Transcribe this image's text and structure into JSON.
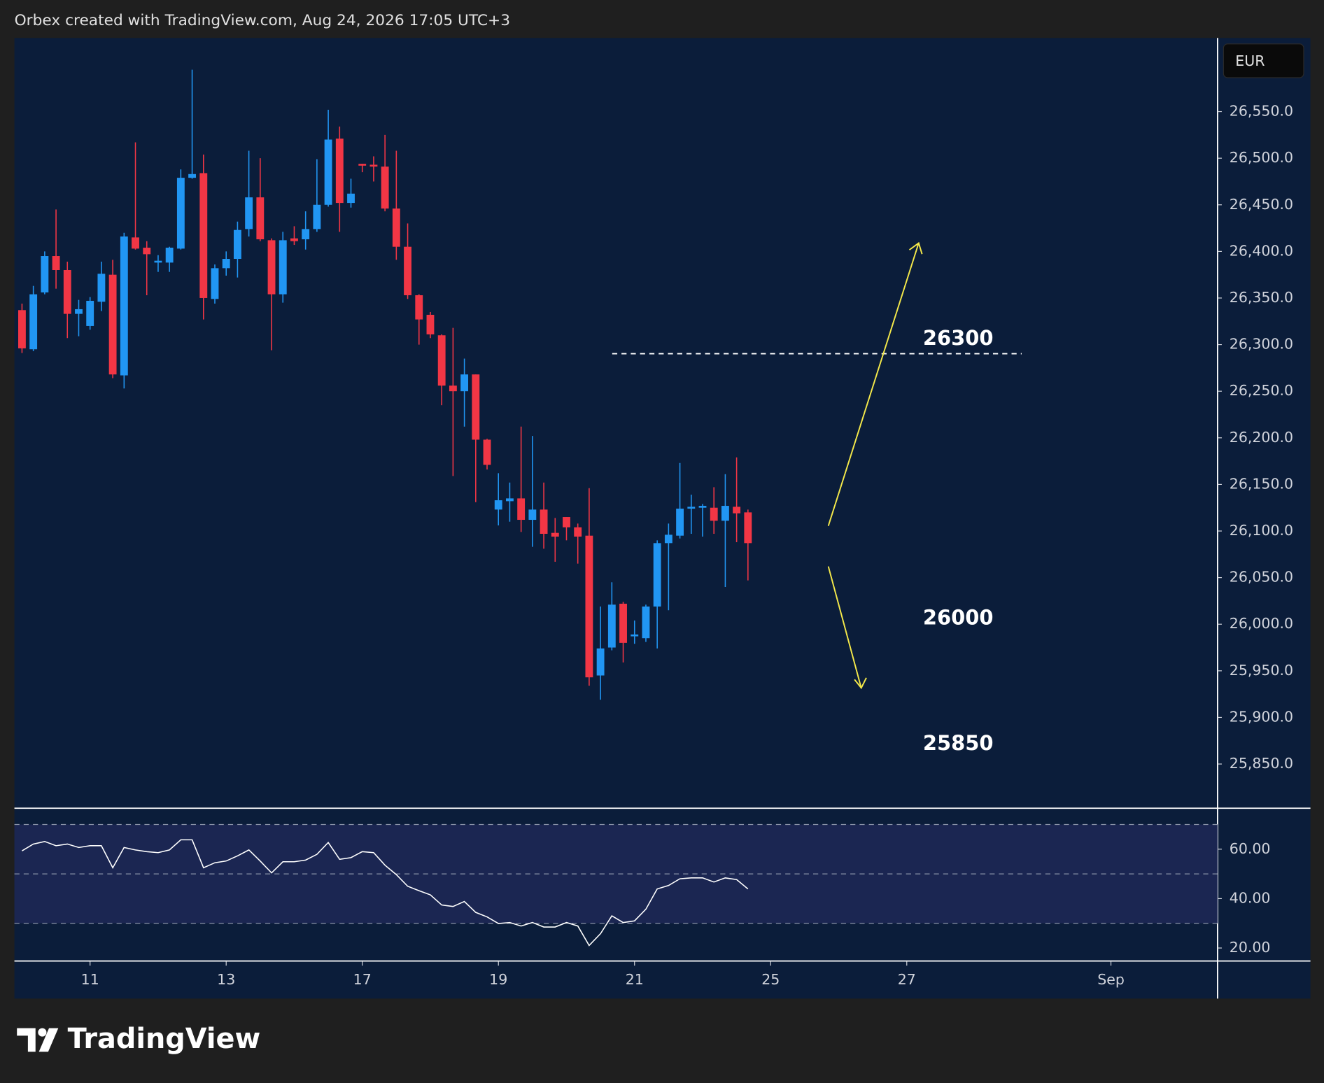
{
  "header": "Orbex created with TradingView.com, Aug 24, 2026 17:05 UTC+3",
  "logo": "TradingView",
  "chart_data": [
    {
      "type": "candlestick",
      "currency": "EUR",
      "up_color": "#2196f3",
      "down_color": "#f23645",
      "annotations": [
        "26300",
        "26000",
        "25850"
      ],
      "open": [
        26337,
        26295,
        26356,
        26395,
        26380,
        26333,
        26320,
        26346,
        26375,
        26267,
        26415,
        26404,
        26388,
        26388,
        26403,
        26479,
        26484,
        26349,
        26382,
        26392,
        26424,
        26458,
        26412,
        26354,
        26414,
        26413,
        26424,
        26450,
        26521,
        26452,
        26494,
        26493,
        26491,
        26446,
        26405,
        26353,
        26332,
        26310,
        26256,
        26250,
        26268,
        26198,
        26123,
        26132,
        26135,
        26112,
        26123,
        26098,
        26115,
        26104,
        26095,
        25945,
        25975,
        26022,
        25987,
        25985,
        26019,
        26087,
        26095,
        26124,
        26125,
        26125,
        26111,
        26126,
        26120
      ],
      "high": [
        26344,
        26363,
        26400,
        26445,
        26389,
        26348,
        26351,
        26389,
        26391,
        26420,
        26517,
        26411,
        26396,
        26405,
        26488,
        26595,
        26504,
        26386,
        26400,
        26432,
        26508,
        26500,
        26414,
        26421,
        26427,
        26443,
        26499,
        26552,
        26534,
        26478,
        26494,
        26502,
        26525,
        26508,
        26430,
        26354,
        26335,
        26311,
        26318,
        26285,
        26268,
        26199,
        26162,
        26152,
        26212,
        26202,
        26152,
        26114,
        26115,
        26108,
        26146,
        26019,
        26045,
        26024,
        26004,
        26021,
        26090,
        26108,
        26173,
        26139,
        26129,
        26147,
        26161,
        26179,
        26123
      ],
      "low": [
        26291,
        26293,
        26354,
        26360,
        26307,
        26309,
        26316,
        26336,
        26264,
        26253,
        26402,
        26353,
        26378,
        26378,
        26402,
        26478,
        26327,
        26344,
        26374,
        26372,
        26416,
        26411,
        26294,
        26345,
        26407,
        26402,
        26421,
        26448,
        26421,
        26447,
        26485,
        26475,
        26443,
        26391,
        26349,
        26300,
        26307,
        26235,
        26159,
        26212,
        26131,
        26166,
        26106,
        26110,
        26099,
        26083,
        26081,
        26067,
        26090,
        26065,
        25934,
        25919,
        25972,
        25959,
        25979,
        25981,
        25974,
        26015,
        26092,
        26097,
        26094,
        26097,
        26040,
        26088,
        26047
      ],
      "close": [
        26296,
        26354,
        26395,
        26380,
        26333,
        26338,
        26347,
        26376,
        26268,
        26416,
        26403,
        26397,
        26390,
        26404,
        26479,
        26483,
        26350,
        26382,
        26392,
        26423,
        26458,
        26413,
        26354,
        26412,
        26411,
        26424,
        26450,
        26520,
        26452,
        26462,
        26492,
        26491,
        26446,
        26405,
        26353,
        26327,
        26311,
        26256,
        26250,
        26268,
        26198,
        26171,
        26133,
        26135,
        26112,
        26123,
        26097,
        26094,
        26104,
        26094,
        25943,
        25974,
        26021,
        25980,
        25989,
        26019,
        26087,
        26096,
        26124,
        26126,
        26127,
        26111,
        26127,
        26119,
        26087
      ],
      "xlim": [
        -0.67,
        105.4
      ],
      "ylim": [
        25803,
        26629
      ],
      "yticks": [
        {
          "value": 25850,
          "label": "25,850.0"
        },
        {
          "value": 25900,
          "label": "25,900.0"
        },
        {
          "value": 25950,
          "label": "25,950.0"
        },
        {
          "value": 26000,
          "label": "26,000.0"
        },
        {
          "value": 26050,
          "label": "26,050.0"
        },
        {
          "value": 26100,
          "label": "26,100.0"
        },
        {
          "value": 26150,
          "label": "26,150.0"
        },
        {
          "value": 26200,
          "label": "26,200.0"
        },
        {
          "value": 26250,
          "label": "26,250.0"
        },
        {
          "value": 26300,
          "label": "26,300.0"
        },
        {
          "value": 26350,
          "label": "26,350.0"
        },
        {
          "value": 26400,
          "label": "26,400.0"
        },
        {
          "value": 26450,
          "label": "26,450.0"
        },
        {
          "value": 26500,
          "label": "26,500.0"
        },
        {
          "value": 26550,
          "label": "26,550.0"
        }
      ],
      "grid": false
    },
    {
      "type": "line",
      "color": "#ffffff",
      "band_color": "#1b2652",
      "values": [
        59.3,
        62.1,
        63.1,
        61.4,
        62.1,
        60.7,
        61.4,
        61.4,
        52.5,
        60.7,
        59.7,
        59.0,
        58.6,
        59.7,
        63.8,
        63.8,
        52.5,
        54.5,
        55.2,
        57.3,
        59.7,
        55.2,
        50.4,
        54.9,
        54.9,
        55.6,
        57.9,
        62.7,
        55.9,
        56.6,
        59.0,
        58.6,
        53.5,
        49.7,
        45.0,
        43.2,
        41.5,
        37.4,
        36.8,
        38.8,
        34.4,
        32.6,
        29.9,
        30.3,
        28.9,
        30.3,
        28.5,
        28.5,
        30.3,
        28.9,
        21.0,
        25.8,
        33.0,
        30.3,
        31.0,
        35.7,
        43.9,
        45.3,
        48.0,
        48.4,
        48.4,
        46.7,
        48.4,
        47.7,
        43.9
      ],
      "bands": [
        70,
        50,
        30
      ],
      "xlim": [
        -0.67,
        105.4
      ],
      "xticks": [
        {
          "value": 6,
          "label": "11"
        },
        {
          "value": 18,
          "label": "13"
        },
        {
          "value": 30,
          "label": "17"
        },
        {
          "value": 42,
          "label": "19"
        },
        {
          "value": 54,
          "label": "21"
        },
        {
          "value": 66,
          "label": "25"
        },
        {
          "value": 78,
          "label": "27"
        },
        {
          "value": 96,
          "label": "Sep"
        }
      ],
      "ylim": [
        14.9,
        76.4
      ],
      "yticks": [
        {
          "value": 20,
          "label": "20.00"
        },
        {
          "value": 40,
          "label": "40.00"
        },
        {
          "value": 60,
          "label": "60.00"
        }
      ],
      "grid": false
    }
  ]
}
